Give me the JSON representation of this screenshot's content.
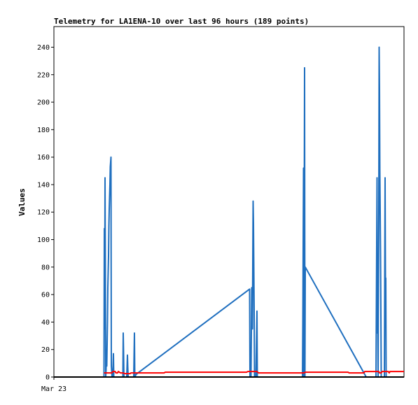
{
  "chart_data": {
    "type": "line",
    "title": "Telemetry for LA1ENA-10 over last 96 hours (189 points)",
    "xlabel": "",
    "ylabel": "Values",
    "x_ticks": [
      "Mar 23"
    ],
    "ylim": [
      0,
      255
    ],
    "y_ticks": [
      0,
      20,
      40,
      60,
      80,
      100,
      120,
      140,
      160,
      180,
      200,
      220,
      240
    ],
    "xlim": [
      0,
      100
    ],
    "grid": false,
    "legend": "none",
    "colors": {
      "blue": "#1f6fbf",
      "red": "#ff0000",
      "black": "#000000"
    },
    "series": [
      {
        "color": "#1f6fbf",
        "points": [
          [
            14.3,
            0
          ],
          [
            14.4,
            108
          ],
          [
            14.5,
            35
          ],
          [
            14.6,
            145
          ],
          [
            14.7,
            72
          ],
          [
            14.8,
            0
          ],
          [
            14.9,
            5
          ],
          [
            15.0,
            20
          ],
          [
            15.1,
            8
          ],
          [
            15.3,
            40
          ],
          [
            15.4,
            65
          ],
          [
            15.6,
            88
          ],
          [
            15.7,
            110
          ],
          [
            15.8,
            122
          ],
          [
            16.0,
            140
          ],
          [
            16.1,
            153
          ],
          [
            16.3,
            160
          ],
          [
            16.4,
            8
          ],
          [
            16.6,
            0
          ],
          [
            16.8,
            0
          ],
          [
            17.0,
            17
          ],
          [
            17.1,
            0
          ],
          [
            17.8,
            0
          ],
          [
            19.7,
            0
          ],
          [
            19.8,
            32
          ],
          [
            19.9,
            17
          ],
          [
            20.0,
            0
          ],
          [
            20.8,
            0
          ],
          [
            21.0,
            16
          ],
          [
            21.1,
            7
          ],
          [
            21.2,
            0
          ],
          [
            22.8,
            0
          ],
          [
            23.0,
            32
          ],
          [
            23.1,
            0
          ],
          [
            23.5,
            2
          ],
          [
            55.9,
            64
          ],
          [
            56.0,
            0
          ],
          [
            56.3,
            0
          ],
          [
            56.5,
            65
          ],
          [
            56.7,
            35
          ],
          [
            56.9,
            128
          ],
          [
            57.0,
            112
          ],
          [
            57.1,
            80
          ],
          [
            57.2,
            48
          ],
          [
            57.3,
            0
          ],
          [
            57.7,
            0
          ],
          [
            58.0,
            48
          ],
          [
            58.1,
            0
          ],
          [
            61.5,
            0
          ],
          [
            71.0,
            0
          ],
          [
            71.1,
            40
          ],
          [
            71.3,
            152
          ],
          [
            71.4,
            0
          ],
          [
            71.6,
            225
          ],
          [
            71.7,
            0
          ],
          [
            71.8,
            80
          ],
          [
            89.2,
            0
          ],
          [
            92.0,
            0
          ],
          [
            92.3,
            145
          ],
          [
            92.4,
            32
          ],
          [
            92.5,
            65
          ],
          [
            92.6,
            0
          ],
          [
            92.8,
            120
          ],
          [
            92.9,
            240
          ],
          [
            93.0,
            210
          ],
          [
            93.1,
            150
          ],
          [
            93.3,
            90
          ],
          [
            93.4,
            45
          ],
          [
            93.5,
            0
          ],
          [
            94.4,
            0
          ],
          [
            94.6,
            145
          ],
          [
            94.7,
            72
          ],
          [
            94.8,
            72
          ],
          [
            94.9,
            0
          ]
        ]
      },
      {
        "color": "#ff0000",
        "points": [
          [
            14.3,
            3
          ],
          [
            16.6,
            3
          ],
          [
            16.8,
            4
          ],
          [
            17.5,
            4
          ],
          [
            17.7,
            3
          ],
          [
            18.2,
            3
          ],
          [
            18.4,
            4
          ],
          [
            19.0,
            3
          ],
          [
            19.8,
            3
          ],
          [
            20.2,
            2.5
          ],
          [
            21.8,
            2.5
          ],
          [
            22.0,
            3
          ],
          [
            31.5,
            3
          ],
          [
            31.8,
            3.5
          ],
          [
            55.0,
            3.5
          ],
          [
            55.4,
            4
          ],
          [
            58.0,
            4
          ],
          [
            58.4,
            3
          ],
          [
            71.5,
            3
          ],
          [
            71.8,
            3.5
          ],
          [
            84.0,
            3.5
          ],
          [
            84.3,
            3
          ],
          [
            88.5,
            3
          ],
          [
            88.8,
            4
          ],
          [
            92.8,
            4
          ],
          [
            93.0,
            3
          ],
          [
            93.5,
            3
          ],
          [
            93.7,
            4
          ],
          [
            95.5,
            4
          ],
          [
            95.8,
            3
          ],
          [
            96.0,
            4
          ],
          [
            100,
            4
          ]
        ]
      },
      {
        "color": "#000000",
        "points": [
          [
            0,
            0
          ],
          [
            100,
            0
          ]
        ]
      }
    ]
  }
}
